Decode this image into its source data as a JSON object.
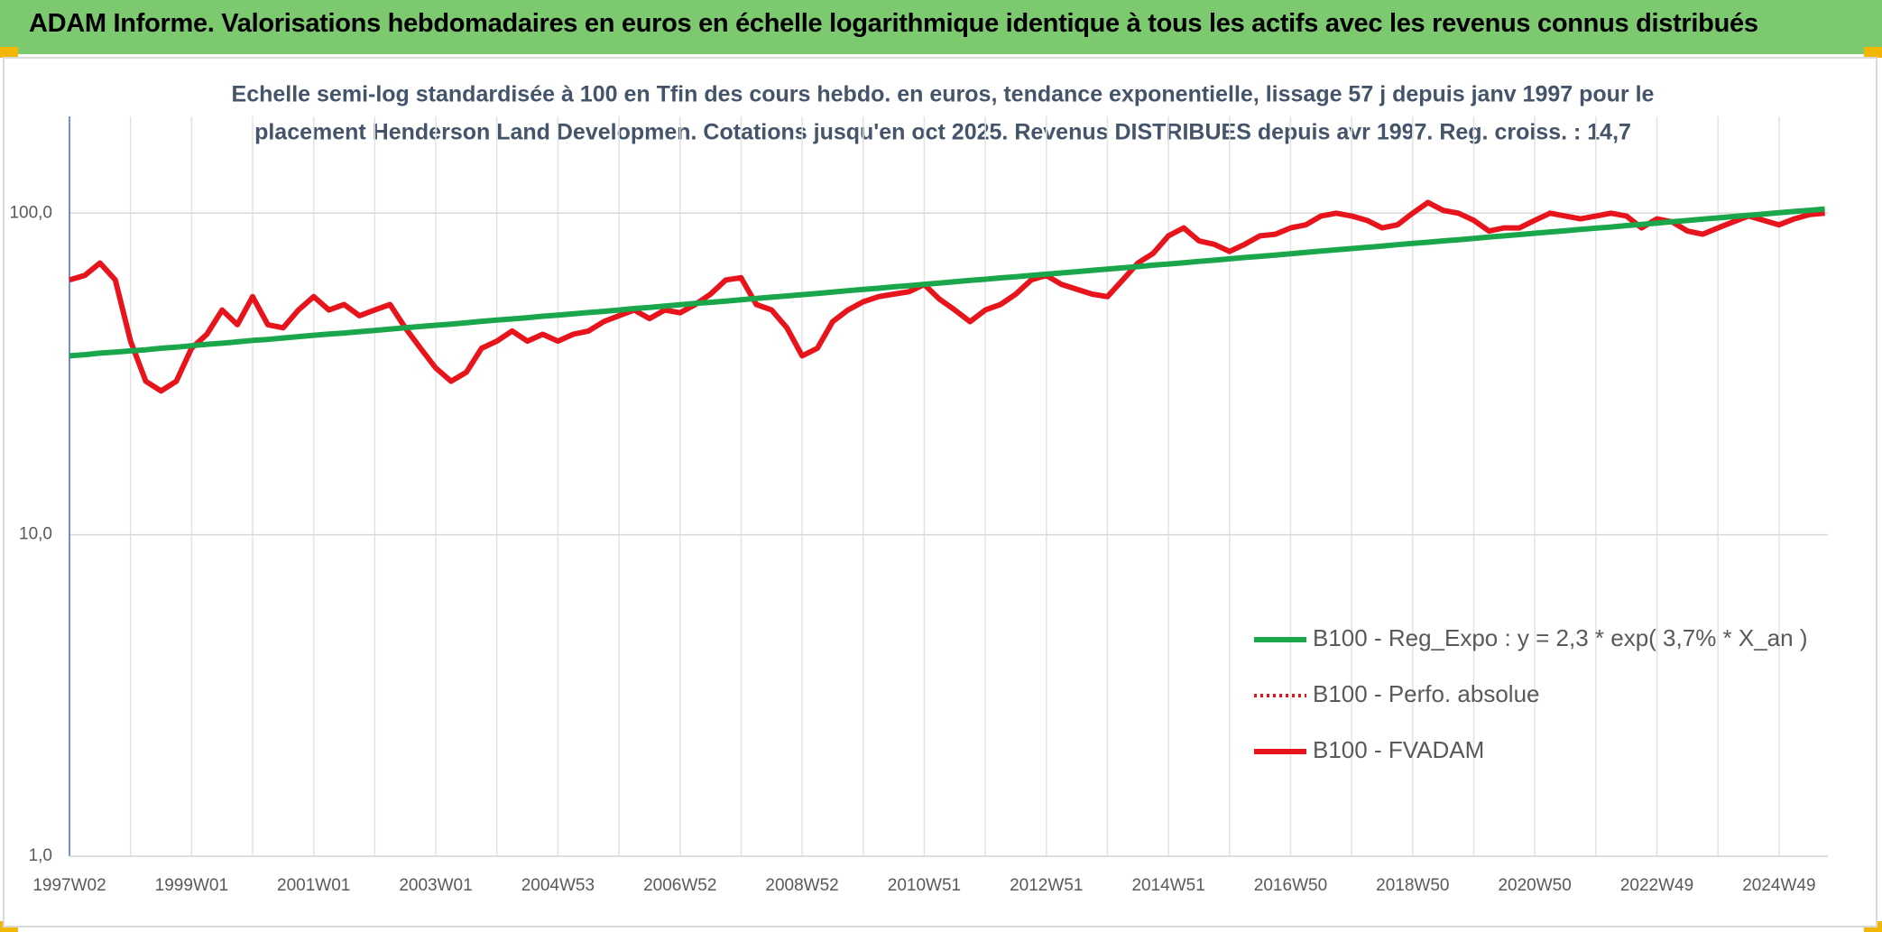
{
  "header": {
    "title": "ADAM Informe. Valorisations hebdomadaires en euros en échelle logarithmique identique à tous les actifs avec les revenus connus distribués"
  },
  "chart_data": {
    "type": "line",
    "title": [
      "Echelle semi-log standardisée à 100 en Tfin des cours hebdo. en euros, tendance exponentielle, lissage 57 j depuis janv 1997 pour le",
      "placement Henderson Land Developmen. Cotations jusqu'en oct 2025. Revenus DISTRIBUES depuis avr 1997. Reg. croiss. : 14,7"
    ],
    "log_scale": true,
    "grid": true,
    "legend": "lower right",
    "ylim": [
      1,
      200
    ],
    "yticks": [
      {
        "value": 1,
        "label": "1,0"
      },
      {
        "value": 10,
        "label": "10,0"
      },
      {
        "value": 100,
        "label": "100,0"
      }
    ],
    "categories": [
      "1997W02",
      null,
      null,
      null,
      null,
      null,
      null,
      null,
      "1999W01",
      null,
      null,
      null,
      null,
      null,
      null,
      null,
      "2001W01",
      null,
      null,
      null,
      null,
      null,
      null,
      null,
      "2003W01",
      null,
      null,
      null,
      null,
      null,
      null,
      null,
      "2004W53",
      null,
      null,
      null,
      null,
      null,
      null,
      null,
      "2006W52",
      null,
      null,
      null,
      null,
      null,
      null,
      null,
      "2008W52",
      null,
      null,
      null,
      null,
      null,
      null,
      null,
      "2010W51",
      null,
      null,
      null,
      null,
      null,
      null,
      null,
      "2012W51",
      null,
      null,
      null,
      null,
      null,
      null,
      null,
      "2014W51",
      null,
      null,
      null,
      null,
      null,
      null,
      null,
      "2016W50",
      null,
      null,
      null,
      null,
      null,
      null,
      null,
      "2018W50",
      null,
      null,
      null,
      null,
      null,
      null,
      null,
      "2020W50",
      null,
      null,
      null,
      null,
      null,
      null,
      null,
      "2022W49",
      null,
      null,
      null,
      null,
      null,
      null,
      null,
      "2024W49",
      null,
      null,
      null
    ],
    "series": [
      {
        "name": "B100 - Reg_Expo : y = 2,3 * exp( 3,7% *  X_an )",
        "color": "#1aa64a",
        "line_style": "solid",
        "values": [
          36.0,
          36.3,
          36.7,
          37.0,
          37.3,
          37.6,
          38.0,
          38.3,
          38.7,
          39.1,
          39.4,
          39.8,
          40.2,
          40.5,
          40.9,
          41.3,
          41.7,
          42.1,
          42.4,
          42.8,
          43.2,
          43.6,
          44.0,
          44.4,
          44.8,
          45.2,
          45.6,
          46.1,
          46.5,
          46.9,
          47.3,
          47.8,
          48.2,
          48.6,
          49.1,
          49.5,
          50.0,
          50.5,
          50.9,
          51.4,
          51.9,
          52.4,
          52.8,
          53.3,
          53.8,
          54.3,
          54.8,
          55.3,
          55.8,
          56.3,
          56.8,
          57.4,
          57.9,
          58.4,
          59.0,
          59.5,
          60.1,
          60.6,
          61.2,
          61.8,
          62.3,
          62.9,
          63.4,
          64.0,
          64.6,
          65.2,
          65.8,
          66.4,
          67.0,
          67.6,
          68.2,
          68.9,
          69.5,
          70.1,
          70.8,
          71.4,
          72.1,
          72.8,
          73.4,
          74.1,
          74.8,
          75.5,
          76.2,
          76.9,
          77.6,
          78.3,
          79.0,
          79.8,
          80.5,
          81.2,
          82.0,
          82.7,
          83.5,
          84.3,
          85.0,
          85.8,
          86.6,
          87.4,
          88.2,
          89.0,
          89.8,
          90.6,
          91.5,
          92.3,
          93.2,
          94.1,
          94.9,
          95.8,
          96.7,
          97.6,
          98.5,
          99.4,
          100.3,
          101.2,
          102.1,
          103.1
        ]
      },
      {
        "name": "B100 - Perfo. absolue",
        "color": "#e8141b",
        "line_style": "dotted",
        "values": [
          62,
          64,
          70,
          62,
          40,
          30,
          28,
          30,
          38,
          42,
          50,
          45,
          55,
          45,
          44,
          50,
          55,
          50,
          52,
          48,
          50,
          52,
          44,
          38,
          33,
          30,
          32,
          38,
          40,
          43,
          40,
          42,
          40,
          42,
          43,
          46,
          48,
          50,
          47,
          50,
          49,
          52,
          56,
          62,
          63,
          52,
          50,
          44,
          36,
          38,
          46,
          50,
          53,
          55,
          56,
          57,
          60,
          54,
          50,
          46,
          50,
          52,
          56,
          62,
          64,
          60,
          58,
          56,
          55,
          62,
          70,
          75,
          85,
          90,
          82,
          80,
          76,
          80,
          85,
          86,
          90,
          92,
          98,
          100,
          98,
          95,
          90,
          92,
          100,
          108,
          102,
          100,
          95,
          88,
          90,
          90,
          95,
          100,
          98,
          96,
          98,
          100,
          98,
          90,
          96,
          94,
          88,
          86,
          90,
          94,
          98,
          95,
          92,
          96,
          99,
          100
        ]
      },
      {
        "name": "B100 - FVADAM",
        "color": "#e8141b",
        "line_style": "solid",
        "values": [
          62,
          64,
          70,
          62,
          40,
          30,
          28,
          30,
          38,
          42,
          50,
          45,
          55,
          45,
          44,
          50,
          55,
          50,
          52,
          48,
          50,
          52,
          44,
          38,
          33,
          30,
          32,
          38,
          40,
          43,
          40,
          42,
          40,
          42,
          43,
          46,
          48,
          50,
          47,
          50,
          49,
          52,
          56,
          62,
          63,
          52,
          50,
          44,
          36,
          38,
          46,
          50,
          53,
          55,
          56,
          57,
          60,
          54,
          50,
          46,
          50,
          52,
          56,
          62,
          64,
          60,
          58,
          56,
          55,
          62,
          70,
          75,
          85,
          90,
          82,
          80,
          76,
          80,
          85,
          86,
          90,
          92,
          98,
          100,
          98,
          95,
          90,
          92,
          100,
          108,
          102,
          100,
          95,
          88,
          90,
          90,
          95,
          100,
          98,
          96,
          98,
          100,
          98,
          90,
          96,
          94,
          88,
          86,
          90,
          94,
          98,
          95,
          92,
          96,
          99,
          100
        ]
      }
    ]
  }
}
